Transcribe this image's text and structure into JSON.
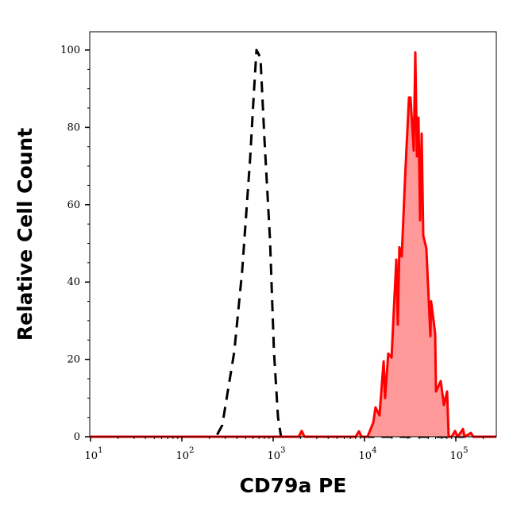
{
  "chart_data": {
    "type": "area",
    "xlabel": "CD79a PE",
    "ylabel": "Relative Cell Count",
    "xscale": "log",
    "xlim": [
      9.5,
      277000
    ],
    "ylim": [
      0,
      105
    ],
    "grid": false,
    "x_ticks": [
      {
        "base": "10",
        "exp": "1",
        "value": 10
      },
      {
        "base": "10",
        "exp": "2",
        "value": 100
      },
      {
        "base": "10",
        "exp": "3",
        "value": 1000
      },
      {
        "base": "10",
        "exp": "4",
        "value": 10000
      },
      {
        "base": "10",
        "exp": "5",
        "value": 100000
      }
    ],
    "y_ticks": [
      "0",
      "20",
      "40",
      "60",
      "80",
      "100"
    ],
    "series": [
      {
        "style": "dashed",
        "color": "#000000",
        "fill": null,
        "x": [
          10,
          237,
          277,
          375,
          458,
          560,
          618,
          657,
          726,
          802,
          923,
          1020,
          1130,
          1220,
          277000
        ],
        "y": [
          0,
          0,
          3,
          22,
          43,
          72,
          90,
          100,
          98,
          77,
          51,
          22,
          5,
          0,
          0
        ]
      },
      {
        "style": "solid",
        "color": "#ff0000",
        "fill": "#ff9999",
        "x": [
          9.5,
          1900,
          2050,
          2200,
          8000,
          8690,
          9300,
          10800,
          12500,
          13200,
          14600,
          16200,
          16800,
          18200,
          19800,
          21000,
          22300,
          23200,
          24100,
          25600,
          27800,
          30700,
          31900,
          34600,
          36000,
          37500,
          39000,
          40600,
          42300,
          44000,
          47600,
          52700,
          53700,
          59400,
          60600,
          68400,
          74100,
          80200,
          83500,
          90000,
          98000,
          105000,
          119700,
          125000,
          146200,
          155000,
          277000
        ],
        "y": [
          0,
          0,
          1.5,
          0,
          0,
          1.4,
          0,
          0,
          3.7,
          7.6,
          5.5,
          19.5,
          10,
          21.5,
          20.5,
          33.5,
          45.8,
          29,
          49,
          46.6,
          67,
          87.7,
          87.7,
          74,
          99.4,
          72.5,
          82.5,
          56,
          78.4,
          52,
          48.7,
          26,
          35,
          26.7,
          11.7,
          14.4,
          8.2,
          11.7,
          0,
          0,
          1.5,
          0,
          2,
          0,
          1,
          0,
          0
        ]
      }
    ]
  }
}
